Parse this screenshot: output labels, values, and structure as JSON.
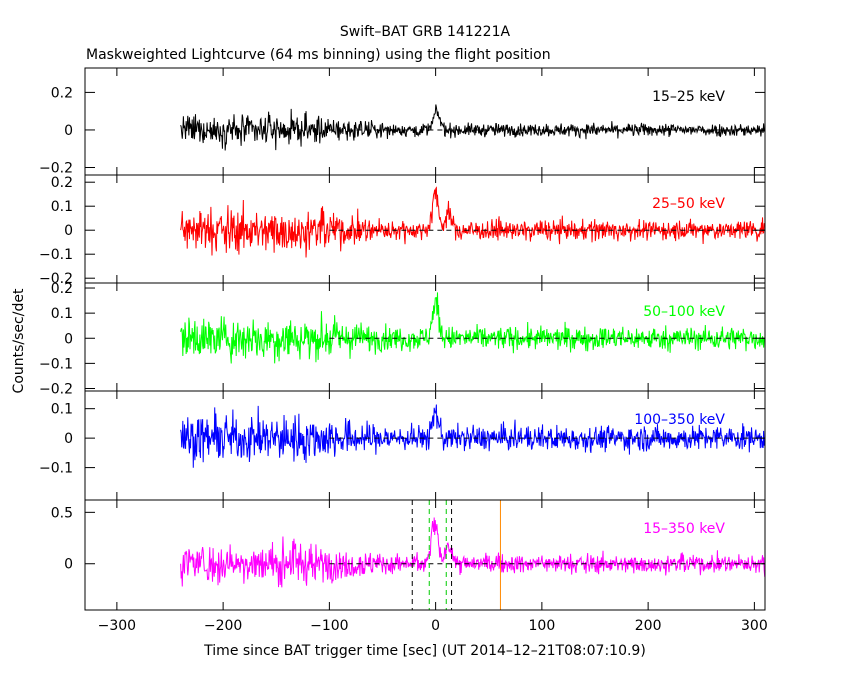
{
  "chart_data": {
    "type": "line",
    "title": "Swift–BAT GRB 141221A",
    "subtitle": "Maskweighted Lightcurve (64 ms binning) using the flight position",
    "xlabel": "Time since BAT trigger time [sec] (UT 2014–12–21T08:07:10.9)",
    "ylabel": "Counts/sec/det",
    "xlim": [
      -330,
      310
    ],
    "x_ticks": [
      -300,
      -200,
      -100,
      0,
      100,
      200,
      300
    ],
    "x_tick_labels": [
      "−300",
      "−200",
      "−100",
      "0",
      "100",
      "200",
      "300"
    ],
    "data_range": [
      -240,
      310
    ],
    "zero_line_from": -100,
    "grid": false,
    "panels": [
      {
        "band": "15–25 keV",
        "color": "#000000",
        "ylim": [
          -0.24,
          0.33
        ],
        "y_ticks": [
          -0.2,
          0,
          0.2
        ],
        "y_tick_labels": [
          "−0.2",
          "0",
          "0.2"
        ],
        "noise_profile": {
          "early": 0.1,
          "late": 0.045
        },
        "peaks": [
          {
            "x": 1,
            "y": 0.14
          }
        ]
      },
      {
        "band": "25–50 keV",
        "color": "#ff0000",
        "ylim": [
          -0.22,
          0.23
        ],
        "y_ticks": [
          -0.2,
          -0.1,
          0,
          0.1,
          0.2
        ],
        "y_tick_labels": [
          "−0.2",
          "−0.1",
          "0",
          "0.1",
          "0.2"
        ],
        "noise_profile": {
          "early": 0.12,
          "late": 0.055
        },
        "peaks": [
          {
            "x": 0,
            "y": 0.22
          },
          {
            "x": 12,
            "y": 0.1
          }
        ]
      },
      {
        "band": "50–100 keV",
        "color": "#00ff00",
        "ylim": [
          -0.21,
          0.22
        ],
        "y_ticks": [
          -0.2,
          -0.1,
          0,
          0.1,
          0.2
        ],
        "y_tick_labels": [
          "−0.2",
          "−0.1",
          "0",
          "0.1",
          "0.2"
        ],
        "noise_profile": {
          "early": 0.11,
          "late": 0.06
        },
        "peaks": [
          {
            "x": 0,
            "y": 0.2
          }
        ]
      },
      {
        "band": "100–350 keV",
        "color": "#0000ff",
        "ylim": [
          -0.21,
          0.16
        ],
        "y_ticks": [
          -0.1,
          0,
          0.1
        ],
        "y_tick_labels": [
          "−0.1",
          "0",
          "0.1"
        ],
        "noise_profile": {
          "early": 0.1,
          "late": 0.055
        },
        "peaks": [
          {
            "x": 0,
            "y": 0.13
          }
        ]
      },
      {
        "band": "15–350 keV",
        "color": "#ff00ff",
        "ylim": [
          -0.45,
          0.62
        ],
        "y_ticks": [
          0,
          0.5
        ],
        "y_tick_labels": [
          "0",
          "0.5"
        ],
        "noise_profile": {
          "early": 0.25,
          "late": 0.12
        },
        "peaks": [
          {
            "x": -1,
            "y": 0.58
          },
          {
            "x": 12,
            "y": 0.3
          }
        ],
        "markers": [
          {
            "x": -22,
            "color": "#000000",
            "style": "dashed"
          },
          {
            "x": -6,
            "color": "#00cc00",
            "style": "dashed"
          },
          {
            "x": 10,
            "color": "#00cc00",
            "style": "dashed"
          },
          {
            "x": 15,
            "color": "#000000",
            "style": "dashed"
          },
          {
            "x": 61,
            "color": "#ff8800",
            "style": "solid"
          }
        ]
      }
    ]
  }
}
